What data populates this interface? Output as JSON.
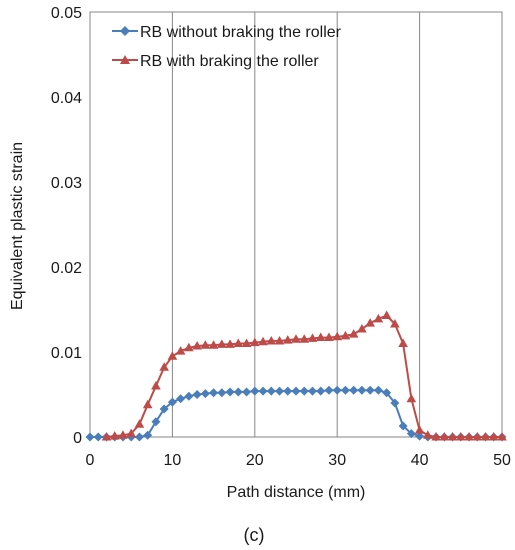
{
  "caption": "(c)",
  "chart_data": {
    "type": "line",
    "xlabel": "Path distance (mm)",
    "ylabel": "Equivalent plastic strain",
    "xlim": [
      0,
      50
    ],
    "ylim": [
      0,
      0.05
    ],
    "x_ticks": [
      "0",
      "10",
      "20",
      "30",
      "40",
      "50"
    ],
    "y_ticks": [
      "0",
      "0.01",
      "0.02",
      "0.03",
      "0.04",
      "0.05"
    ],
    "grid": "vertical major gridlines",
    "legend_position": "top-left, inside plot",
    "series": [
      {
        "name": "RB without braking the roller",
        "color": "#4a7ebb",
        "marker": "diamond",
        "x": [
          0,
          1,
          2,
          3,
          4,
          5,
          6,
          7,
          8,
          9,
          10,
          11,
          12,
          13,
          14,
          15,
          16,
          17,
          18,
          19,
          20,
          21,
          22,
          23,
          24,
          25,
          26,
          27,
          28,
          29,
          30,
          31,
          32,
          33,
          34,
          35,
          36,
          37,
          38,
          39,
          40,
          41,
          42,
          43,
          44,
          45,
          46,
          47,
          48,
          49,
          50
        ],
        "y": [
          0,
          0,
          0,
          0,
          0,
          0,
          0,
          0.0002,
          0.0018,
          0.0033,
          0.0041,
          0.0045,
          0.0048,
          0.005,
          0.0051,
          0.0052,
          0.0052,
          0.0053,
          0.0053,
          0.0053,
          0.0054,
          0.0054,
          0.0054,
          0.0054,
          0.0054,
          0.0054,
          0.0054,
          0.0054,
          0.0054,
          0.0055,
          0.0055,
          0.0055,
          0.0055,
          0.0055,
          0.0055,
          0.0055,
          0.0052,
          0.004,
          0.0013,
          0.0004,
          0.0001,
          0,
          0,
          0,
          0,
          0,
          0,
          0,
          0,
          0,
          0
        ]
      },
      {
        "name": "RB with braking the roller",
        "color": "#be4b48",
        "marker": "triangle",
        "x": [
          2,
          3,
          4,
          5,
          6,
          7,
          8,
          9,
          10,
          11,
          12,
          13,
          14,
          15,
          16,
          17,
          18,
          19,
          20,
          21,
          22,
          23,
          24,
          25,
          26,
          27,
          28,
          29,
          30,
          31,
          32,
          33,
          34,
          35,
          36,
          37,
          38,
          39,
          40,
          41,
          42,
          43,
          44,
          45,
          46,
          47,
          48,
          49,
          50
        ],
        "y": [
          0,
          0.0001,
          0.0002,
          0.0004,
          0.0015,
          0.0038,
          0.006,
          0.0082,
          0.0095,
          0.0101,
          0.0105,
          0.0107,
          0.0108,
          0.0108,
          0.0109,
          0.0109,
          0.011,
          0.011,
          0.0111,
          0.0112,
          0.0113,
          0.0113,
          0.0114,
          0.0115,
          0.0115,
          0.0116,
          0.0117,
          0.0117,
          0.0118,
          0.0119,
          0.0121,
          0.0127,
          0.0134,
          0.0139,
          0.0143,
          0.0133,
          0.011,
          0.0045,
          0.0008,
          0.0002,
          0,
          0,
          0,
          0,
          0,
          0,
          0,
          0,
          0
        ]
      }
    ]
  }
}
